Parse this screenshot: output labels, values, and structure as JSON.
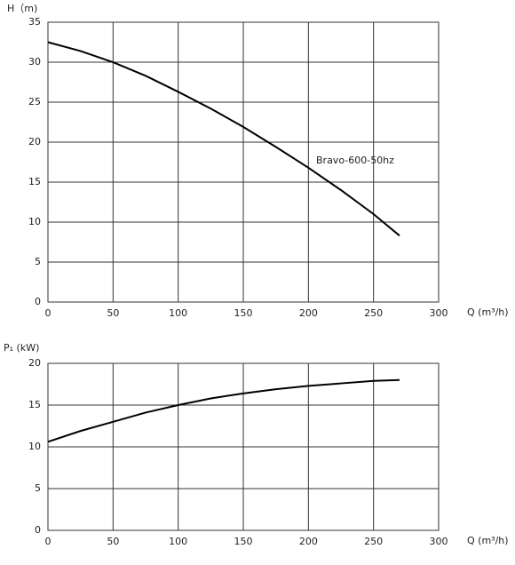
{
  "chart_data": [
    {
      "type": "line",
      "y_label": "H（m)",
      "x_label": "Q (m³/h)",
      "x": [
        0,
        25,
        50,
        75,
        100,
        125,
        150,
        175,
        200,
        225,
        250,
        270
      ],
      "series": [
        {
          "name": "Bravo-600-50hz",
          "color": "#000000",
          "values": [
            32.5,
            31.4,
            30.0,
            28.3,
            26.3,
            24.2,
            21.9,
            19.4,
            16.8,
            14.0,
            11.0,
            8.3
          ]
        }
      ],
      "xlim": [
        0,
        300
      ],
      "xticks": [
        0,
        50,
        100,
        150,
        200,
        250,
        300
      ],
      "ylim": [
        0,
        35
      ],
      "yticks": [
        0,
        5,
        10,
        15,
        20,
        25,
        30,
        35
      ],
      "grid": true
    },
    {
      "type": "line",
      "y_label": "P₁ (kW)",
      "x_label": "Q (m³/h)",
      "x": [
        0,
        25,
        50,
        75,
        100,
        125,
        150,
        175,
        200,
        225,
        250,
        270
      ],
      "series": [
        {
          "color": "#000000",
          "values": [
            10.6,
            11.9,
            13.0,
            14.1,
            15.0,
            15.8,
            16.4,
            16.9,
            17.3,
            17.6,
            17.9,
            18.0
          ]
        }
      ],
      "xlim": [
        0,
        300
      ],
      "xticks": [
        0,
        50,
        100,
        150,
        200,
        250,
        300
      ],
      "ylim": [
        0,
        20
      ],
      "yticks": [
        0,
        5,
        10,
        15,
        20
      ],
      "grid": true
    }
  ]
}
